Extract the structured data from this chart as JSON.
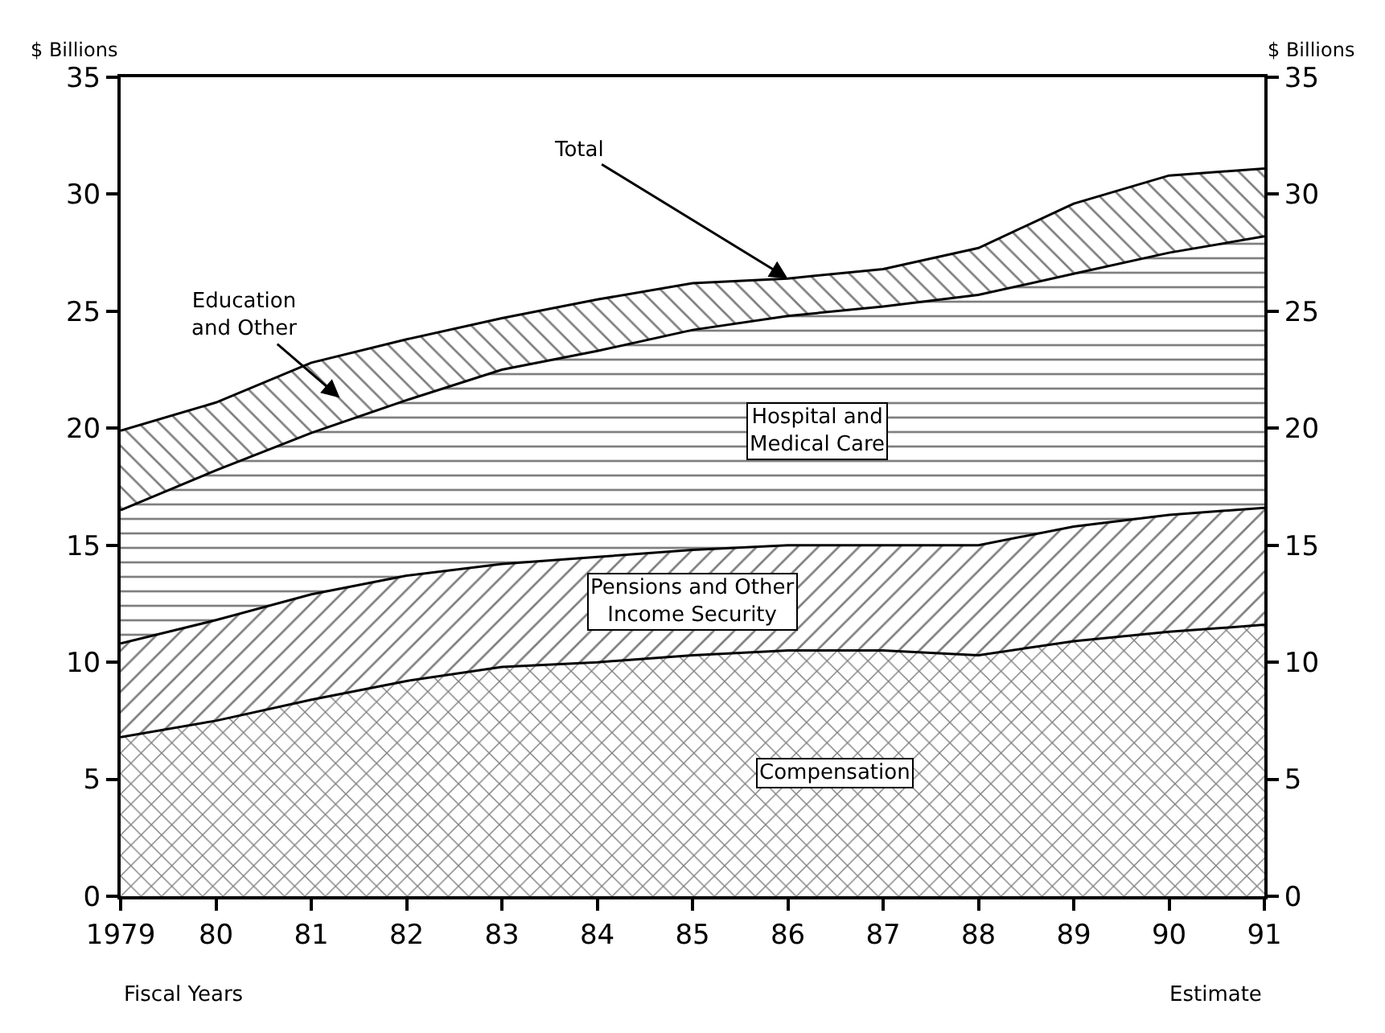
{
  "chart_data": {
    "type": "area",
    "stacked": true,
    "xlabel": "Fiscal Years",
    "ylabel": "$ Billions",
    "y2label": "$ Billions",
    "x": [
      1979,
      1980,
      1981,
      1982,
      1983,
      1984,
      1985,
      1986,
      1987,
      1988,
      1989,
      1990,
      1991
    ],
    "series": [
      {
        "name": "Compensation",
        "color": "#000000",
        "values": [
          6.8,
          7.5,
          8.4,
          9.2,
          9.8,
          10.0,
          10.3,
          10.5,
          10.5,
          10.3,
          10.9,
          11.3,
          11.6
        ]
      },
      {
        "name": "Pensions and Other\nIncome Security",
        "color": "#000000",
        "values": [
          4.0,
          4.3,
          4.5,
          4.5,
          4.4,
          4.5,
          4.5,
          4.5,
          4.5,
          4.7,
          4.9,
          5.0,
          5.0
        ]
      },
      {
        "name": "Hospital and\nMedical Care",
        "color": "#000000",
        "values": [
          5.7,
          6.4,
          6.9,
          7.5,
          8.3,
          8.8,
          9.4,
          9.8,
          10.2,
          10.7,
          10.8,
          11.2,
          11.6
        ]
      },
      {
        "name": "Education\nand Other",
        "color": "#000000",
        "values": [
          3.4,
          2.9,
          3.0,
          2.6,
          2.2,
          2.2,
          2.0,
          1.6,
          1.6,
          2.0,
          3.0,
          3.3,
          2.9
        ]
      }
    ],
    "annotations": [
      {
        "text": "Total",
        "x": 1986,
        "y": 26.4
      },
      "Estimate"
    ],
    "xlim": [
      1979,
      1991
    ],
    "xticks": [
      1979,
      {
        "value": 1980,
        "label": "80"
      },
      {
        "value": 1981,
        "label": "81"
      },
      {
        "value": 1982,
        "label": "82"
      },
      {
        "value": 1983,
        "label": "83"
      },
      {
        "value": 1984,
        "label": "84"
      },
      {
        "value": 1985,
        "label": "85"
      },
      {
        "value": 1986,
        "label": "86"
      },
      {
        "value": 1987,
        "label": "87"
      },
      {
        "value": 1988,
        "label": "88"
      },
      {
        "value": 1989,
        "label": "89"
      },
      {
        "value": 1990,
        "label": "90"
      },
      {
        "value": 1991,
        "label": "91"
      }
    ],
    "ylim": [
      0,
      35
    ],
    "yticks": [
      0,
      5,
      10,
      15,
      20,
      25,
      30,
      35
    ],
    "y2lim": [
      0,
      35
    ],
    "y2ticks": [
      0,
      5,
      10,
      15,
      20,
      25,
      30,
      35
    ],
    "legend": false,
    "marker": "none",
    "line_style": "solid"
  }
}
